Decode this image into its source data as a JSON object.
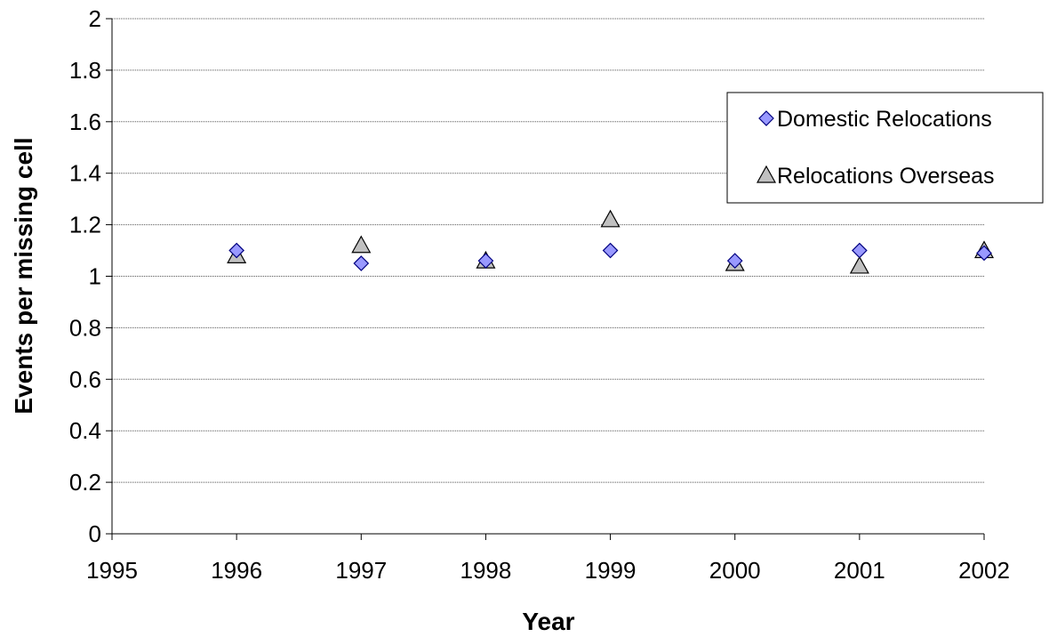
{
  "chart_data": {
    "type": "scatter",
    "xlabel": "Year",
    "ylabel": "Events per missing cell",
    "xlim": [
      1995,
      2002
    ],
    "ylim": [
      0,
      2
    ],
    "x_ticks": [
      "1995",
      "1996",
      "1997",
      "1998",
      "1999",
      "2000",
      "2001",
      "2002"
    ],
    "y_ticks": [
      "0",
      "0.2",
      "0.4",
      "0.6",
      "0.8",
      "1",
      "1.2",
      "1.4",
      "1.6",
      "1.8",
      "2"
    ],
    "grid": "horizontal",
    "legend_position": "right",
    "series": [
      {
        "name": "Domestic Relocations",
        "marker": "diamond",
        "color": "#9999ff",
        "x": [
          1996,
          1997,
          1998,
          1999,
          2000,
          2001,
          2002
        ],
        "y": [
          1.1,
          1.05,
          1.06,
          1.1,
          1.06,
          1.1,
          1.09
        ]
      },
      {
        "name": "Relocations Overseas",
        "marker": "triangle",
        "color": "#c0c0c0",
        "x": [
          1996,
          1997,
          1998,
          1999,
          2000,
          2001,
          2002
        ],
        "y": [
          1.08,
          1.12,
          1.06,
          1.22,
          1.05,
          1.04,
          1.1
        ]
      }
    ]
  }
}
